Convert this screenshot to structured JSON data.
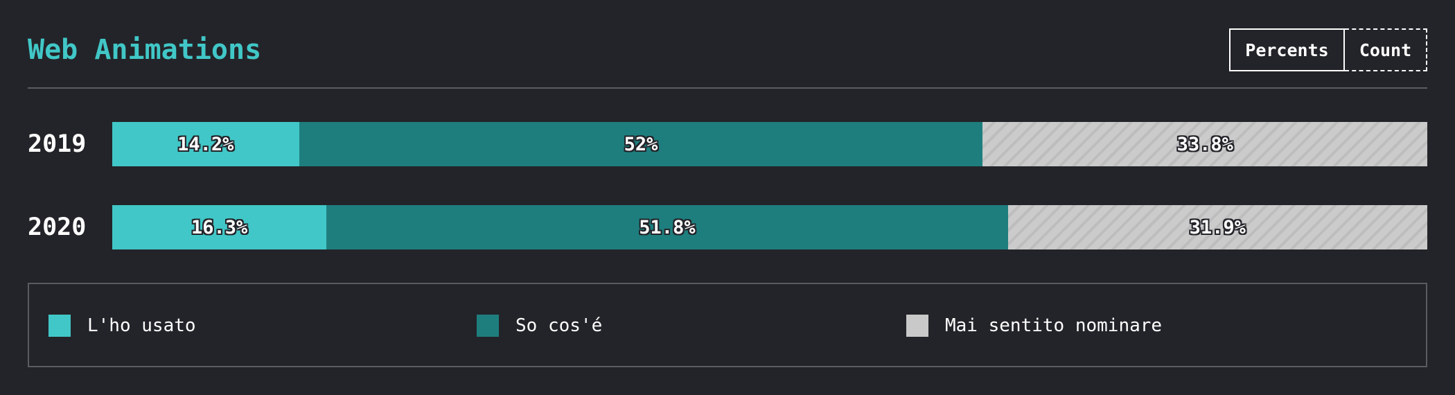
{
  "header": {
    "title": "Web Animations",
    "toggle": {
      "percents_label": "Percents",
      "count_label": "Count",
      "selected": "Percents"
    }
  },
  "colors": {
    "used": "#41c7c7",
    "know": "#1e7e7e",
    "never": "#c9c9c9",
    "title": "#41c7c7",
    "background": "#232429"
  },
  "chart_data": {
    "type": "bar",
    "orientation": "horizontal",
    "stacked": true,
    "normalized": true,
    "unit": "%",
    "title": "Web Animations",
    "categories": [
      "2019",
      "2020"
    ],
    "series": [
      {
        "name": "L'ho usato",
        "values": [
          14.2,
          16.3
        ],
        "labels": [
          "14.2%",
          "16.3%"
        ],
        "color": "#41c7c7"
      },
      {
        "name": "So cos'é",
        "values": [
          52,
          51.8
        ],
        "labels": [
          "52%",
          "51.8%"
        ],
        "color": "#1e7e7e"
      },
      {
        "name": "Mai sentito nominare",
        "values": [
          33.8,
          31.9
        ],
        "labels": [
          "33.8%",
          "31.9%"
        ],
        "color": "#c9c9c9",
        "pattern": "diagonal-stripes"
      }
    ],
    "xlim": [
      0,
      100
    ],
    "grid": false,
    "legend_position": "bottom"
  },
  "legend": {
    "items": [
      {
        "label": "L'ho usato",
        "color": "#41c7c7"
      },
      {
        "label": "So cos'é",
        "color": "#1e7e7e"
      },
      {
        "label": "Mai sentito nominare",
        "color": "#c9c9c9"
      }
    ]
  }
}
